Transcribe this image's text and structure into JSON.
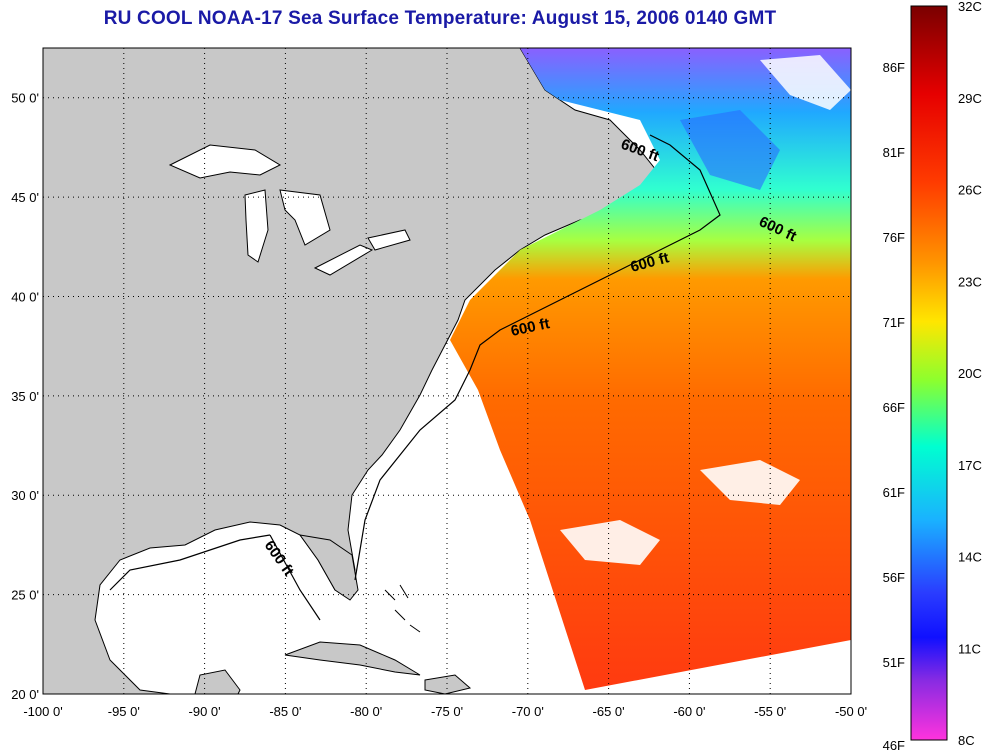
{
  "title": "RU COOL  NOAA-17  Sea Surface Temperature:  August 15, 2006 0140 GMT",
  "map": {
    "lon_range": [
      -100,
      -50
    ],
    "lat_range": [
      20,
      52.5
    ],
    "x_ticks": [
      "-100 0'",
      "-95 0'",
      "-90 0'",
      "-85 0'",
      "-80 0'",
      "-75 0'",
      "-70 0'",
      "-65 0'",
      "-60 0'",
      "-55 0'",
      "-50 0'"
    ],
    "y_ticks": [
      "50 0'",
      "45 0'",
      "40 0'",
      "35 0'",
      "30 0'",
      "25 0'",
      "20 0'"
    ],
    "grid": "dotted",
    "land_color": "#c8c8c8",
    "isobath_label": "600 ft"
  },
  "colorbar": {
    "fahrenheit_labels": [
      "86F",
      "81F",
      "76F",
      "71F",
      "66F",
      "61F",
      "56F",
      "51F",
      "46F"
    ],
    "celsius_labels": [
      "32C",
      "29C",
      "26C",
      "23C",
      "20C",
      "17C",
      "14C",
      "11C",
      "8C"
    ],
    "colors": [
      "#8b0000",
      "#ff1a00",
      "#ff7a00",
      "#ffe600",
      "#7cff3a",
      "#00ffd5",
      "#1a66ff",
      "#1a1aff",
      "#8a2be2",
      "#ff33cc"
    ]
  }
}
